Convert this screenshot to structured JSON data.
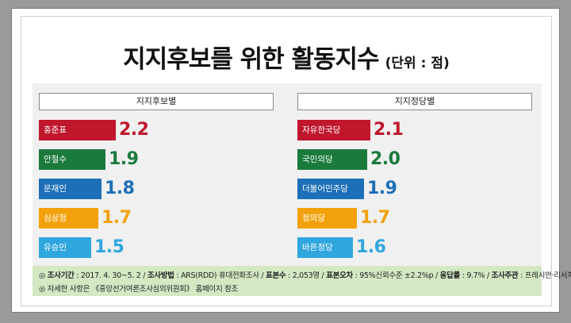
{
  "header": {
    "title": "지지후보를 위한 활동지수",
    "unit": "(단위 : 점)"
  },
  "chart_data": [
    {
      "type": "bar",
      "orientation": "horizontal",
      "title": "지지후보별",
      "categories": [
        "홍준표",
        "안철수",
        "문재인",
        "심상정",
        "유승민"
      ],
      "values": [
        2.2,
        1.9,
        1.8,
        1.7,
        1.5
      ],
      "value_labels": [
        "2.2",
        "1.9",
        "1.8",
        "1.7",
        "1.5"
      ],
      "colors": [
        "#c0172c",
        "#1a7a3b",
        "#1d6fb8",
        "#f2a10c",
        "#2fa6de"
      ]
    },
    {
      "type": "bar",
      "orientation": "horizontal",
      "title": "지지정당별",
      "categories": [
        "자유한국당",
        "국민의당",
        "더불어민주당",
        "정의당",
        "바른정당"
      ],
      "values": [
        2.1,
        2.0,
        1.9,
        1.7,
        1.6
      ],
      "value_labels": [
        "2.1",
        "2.0",
        "1.9",
        "1.7",
        "1.6"
      ],
      "colors": [
        "#c0172c",
        "#1a7a3b",
        "#1d6fb8",
        "#f2a10c",
        "#2fa6de"
      ]
    }
  ],
  "footer": {
    "line1": [
      {
        "t": "◎ "
      },
      {
        "t": "조사기간",
        "b": true
      },
      {
        "t": " : 2017. 4. 30~5. 2 / "
      },
      {
        "t": "조사방법",
        "b": true
      },
      {
        "t": " : ARS(RDD) 휴대전화조사 / "
      },
      {
        "t": "표본수",
        "b": true
      },
      {
        "t": " : 2,053명 / "
      },
      {
        "t": "표본오차",
        "b": true
      },
      {
        "t": " : 95%신뢰수준 ±2.2%p / "
      },
      {
        "t": "응답률",
        "b": true
      },
      {
        "t": " : 9.7% / "
      },
      {
        "t": "조사주관",
        "b": true
      },
      {
        "t": " : 프레시안·리서치뷰"
      }
    ],
    "line2": "◎ 자세한 사항은 《중앙선거여론조사심의위원회》 홈페이지 참조"
  }
}
